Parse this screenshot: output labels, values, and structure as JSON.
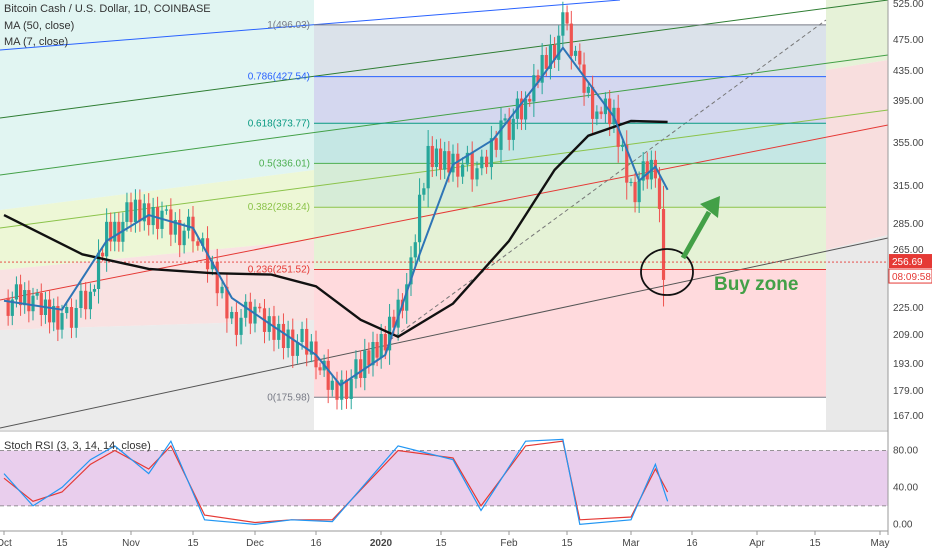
{
  "header": {
    "symbol_line": "Bitcoin Cash / U.S. Dollar, 1D, COINBASE",
    "ma50_label": "MA (50, close)",
    "ma7_label": "MA (7, close)"
  },
  "chart_data": [
    {
      "type": "candlestick",
      "title": "Bitcoin Cash / U.S. Dollar, 1D, COINBASE",
      "x_ticks": [
        "Oct",
        "15",
        "Nov",
        "15",
        "Dec",
        "16",
        "2020",
        "15",
        "Feb",
        "15",
        "Mar",
        "16",
        "Apr",
        "15",
        "May"
      ],
      "y_ticks": [
        525.0,
        475.0,
        435.0,
        395.0,
        355.0,
        315.0,
        285.0,
        265.0,
        225.0,
        209.0,
        193.0,
        179.0,
        167.0
      ],
      "y_range": [
        160,
        530
      ],
      "current_price": "256.69",
      "countdown": "08:09:58",
      "fib_levels": [
        {
          "label": "1(496.03)",
          "value": 496.03,
          "color": "#787b86"
        },
        {
          "label": "0.786(427.54)",
          "value": 427.54,
          "color": "#2962ff"
        },
        {
          "label": "0.618(373.77)",
          "value": 373.77,
          "color": "#089981"
        },
        {
          "label": "0.5(336.01)",
          "value": 336.01,
          "color": "#4caf50"
        },
        {
          "label": "0.382(298.24)",
          "value": 298.24,
          "color": "#8bc34a"
        },
        {
          "label": "0.236(251.52)",
          "value": 251.52,
          "color": "#e53935"
        },
        {
          "label": "0(175.98)",
          "value": 175.98,
          "color": "#787b86"
        }
      ],
      "close_series": [
        {
          "date": "Oct 01",
          "close": 232
        },
        {
          "date": "Oct 08",
          "close": 228
        },
        {
          "date": "Oct 15",
          "close": 222
        },
        {
          "date": "Oct 22",
          "close": 228
        },
        {
          "date": "Oct 26",
          "close": 280
        },
        {
          "date": "Nov 01",
          "close": 290
        },
        {
          "date": "Nov 08",
          "close": 292
        },
        {
          "date": "Nov 15",
          "close": 275
        },
        {
          "date": "Nov 20",
          "close": 248
        },
        {
          "date": "Nov 25",
          "close": 220
        },
        {
          "date": "Dec 01",
          "close": 218
        },
        {
          "date": "Dec 08",
          "close": 212
        },
        {
          "date": "Dec 16",
          "close": 196
        },
        {
          "date": "Dec 20",
          "close": 180
        },
        {
          "date": "Dec 27",
          "close": 188
        },
        {
          "date": "Jan 02",
          "close": 208
        },
        {
          "date": "Jan 08",
          "close": 248
        },
        {
          "date": "Jan 12",
          "close": 340
        },
        {
          "date": "Jan 18",
          "close": 345
        },
        {
          "date": "Jan 24",
          "close": 320
        },
        {
          "date": "Jan 30",
          "close": 372
        },
        {
          "date": "Feb 05",
          "close": 384
        },
        {
          "date": "Feb 09",
          "close": 445
        },
        {
          "date": "Feb 14",
          "close": 490
        },
        {
          "date": "Feb 17",
          "close": 445
        },
        {
          "date": "Feb 22",
          "close": 385
        },
        {
          "date": "Feb 26",
          "close": 375
        },
        {
          "date": "Mar 01",
          "close": 315
        },
        {
          "date": "Mar 05",
          "close": 325
        },
        {
          "date": "Mar 07",
          "close": 330
        },
        {
          "date": "Mar 09",
          "close": 256.69
        }
      ],
      "ma7_series": [
        {
          "date": "Oct 01",
          "value": 230
        },
        {
          "date": "Oct 15",
          "value": 224
        },
        {
          "date": "Oct 26",
          "value": 272
        },
        {
          "date": "Nov 05",
          "value": 292
        },
        {
          "date": "Nov 15",
          "value": 282
        },
        {
          "date": "Nov 25",
          "value": 232
        },
        {
          "date": "Dec 05",
          "value": 215
        },
        {
          "date": "Dec 16",
          "value": 198
        },
        {
          "date": "Dec 22",
          "value": 182
        },
        {
          "date": "Jan 02",
          "value": 198
        },
        {
          "date": "Jan 10",
          "value": 262
        },
        {
          "date": "Jan 18",
          "value": 335
        },
        {
          "date": "Jan 28",
          "value": 358
        },
        {
          "date": "Feb 08",
          "value": 420
        },
        {
          "date": "Feb 14",
          "value": 465
        },
        {
          "date": "Feb 20",
          "value": 420
        },
        {
          "date": "Feb 26",
          "value": 380
        },
        {
          "date": "Mar 03",
          "value": 320
        },
        {
          "date": "Mar 07",
          "value": 333
        },
        {
          "date": "Mar 10",
          "value": 312
        }
      ],
      "ma50_series": [
        {
          "date": "Oct 01",
          "value": 292
        },
        {
          "date": "Oct 20",
          "value": 262
        },
        {
          "date": "Nov 05",
          "value": 252
        },
        {
          "date": "Nov 20",
          "value": 249
        },
        {
          "date": "Dec 05",
          "value": 248
        },
        {
          "date": "Dec 16",
          "value": 240
        },
        {
          "date": "Dec 27",
          "value": 218
        },
        {
          "date": "Jan 05",
          "value": 208
        },
        {
          "date": "Jan 18",
          "value": 228
        },
        {
          "date": "Feb 01",
          "value": 272
        },
        {
          "date": "Feb 12",
          "value": 330
        },
        {
          "date": "Feb 20",
          "value": 362
        },
        {
          "date": "Mar 01",
          "value": 376
        },
        {
          "date": "Mar 10",
          "value": 375
        }
      ],
      "annotations": {
        "buy_zone_text": "Buy zone"
      }
    },
    {
      "type": "line",
      "title": "Stoch RSI (3, 3, 14, 14, close)",
      "y_ticks": [
        80.0,
        40.0,
        0.0
      ],
      "y_range": [
        -5,
        100
      ],
      "band": [
        20,
        80
      ],
      "k_series": [
        {
          "date": "Oct 01",
          "value": 55
        },
        {
          "date": "Oct 08",
          "value": 20
        },
        {
          "date": "Oct 15",
          "value": 40
        },
        {
          "date": "Oct 22",
          "value": 70
        },
        {
          "date": "Oct 28",
          "value": 85
        },
        {
          "date": "Nov 05",
          "value": 55
        },
        {
          "date": "Nov 10",
          "value": 90
        },
        {
          "date": "Nov 18",
          "value": 5
        },
        {
          "date": "Dec 01",
          "value": 0
        },
        {
          "date": "Dec 10",
          "value": 5
        },
        {
          "date": "Dec 20",
          "value": 3
        },
        {
          "date": "Jan 05",
          "value": 85
        },
        {
          "date": "Jan 18",
          "value": 70
        },
        {
          "date": "Jan 25",
          "value": 15
        },
        {
          "date": "Feb 05",
          "value": 90
        },
        {
          "date": "Feb 14",
          "value": 92
        },
        {
          "date": "Feb 18",
          "value": 0
        },
        {
          "date": "Mar 01",
          "value": 5
        },
        {
          "date": "Mar 07",
          "value": 65
        },
        {
          "date": "Mar 10",
          "value": 25
        }
      ],
      "d_series": [
        {
          "date": "Oct 01",
          "value": 50
        },
        {
          "date": "Oct 08",
          "value": 25
        },
        {
          "date": "Oct 15",
          "value": 35
        },
        {
          "date": "Oct 22",
          "value": 65
        },
        {
          "date": "Oct 28",
          "value": 80
        },
        {
          "date": "Nov 05",
          "value": 60
        },
        {
          "date": "Nov 10",
          "value": 85
        },
        {
          "date": "Nov 18",
          "value": 10
        },
        {
          "date": "Dec 01",
          "value": 2
        },
        {
          "date": "Dec 10",
          "value": 5
        },
        {
          "date": "Dec 20",
          "value": 5
        },
        {
          "date": "Jan 05",
          "value": 80
        },
        {
          "date": "Jan 18",
          "value": 72
        },
        {
          "date": "Jan 25",
          "value": 20
        },
        {
          "date": "Feb 05",
          "value": 85
        },
        {
          "date": "Feb 14",
          "value": 90
        },
        {
          "date": "Feb 18",
          "value": 5
        },
        {
          "date": "Mar 01",
          "value": 8
        },
        {
          "date": "Mar 07",
          "value": 60
        },
        {
          "date": "Mar 10",
          "value": 35
        }
      ]
    }
  ],
  "colors": {
    "candle_up": "#26a69a",
    "candle_down": "#ef5350",
    "ma7": "#2e75b6",
    "ma50": "#111111",
    "stoch_k": "#2196f3",
    "stoch_d": "#e53935",
    "stoch_band": "#e1bee7",
    "buy_zone": "#43a047",
    "price_tag": "#e53935"
  },
  "stoch_label": "Stoch RSI (3, 3, 14, 14, close)"
}
